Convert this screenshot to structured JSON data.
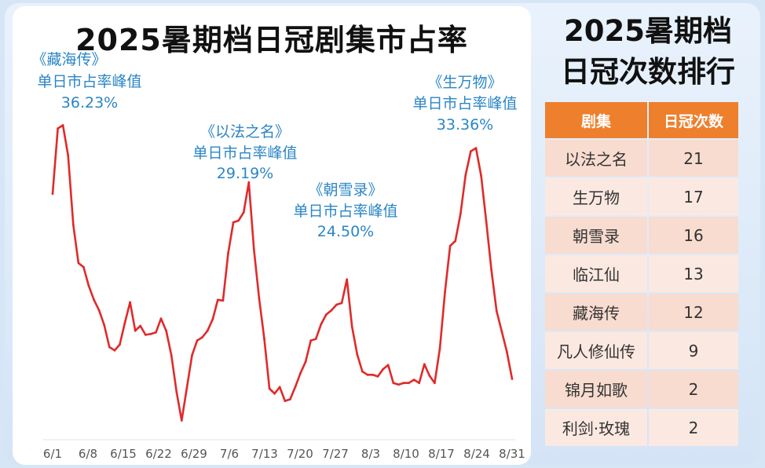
{
  "chart_title": "2025暑期档日冠剧集市占率",
  "side_title_line1": "2025暑期档",
  "side_title_line2": "日冠次数排行",
  "table": {
    "headers": [
      "剧集",
      "日冠次数"
    ],
    "rows": [
      {
        "name": "以法之名",
        "count": "21"
      },
      {
        "name": "生万物",
        "count": "17"
      },
      {
        "name": "朝雪录",
        "count": "16"
      },
      {
        "name": "临江仙",
        "count": "13"
      },
      {
        "name": "藏海传",
        "count": "12"
      },
      {
        "name": "凡人修仙传",
        "count": "9"
      },
      {
        "name": "锦月如歌",
        "count": "2"
      },
      {
        "name": "利剑·玫瑰",
        "count": "2"
      }
    ]
  },
  "colors": {
    "line": "#e02a2a",
    "annotation": "#2b86c5",
    "table_header": "#ee7f2d"
  },
  "chart_data": {
    "type": "line",
    "title": "2025暑期档日冠剧集市占率",
    "xlabel": "",
    "ylabel": "",
    "ylim": [
      0,
      40
    ],
    "grid": false,
    "x_ticks": [
      "6/1",
      "6/8",
      "6/15",
      "6/22",
      "6/29",
      "7/6",
      "7/13",
      "7/20",
      "7/27",
      "8/3",
      "8/10",
      "8/17",
      "8/24",
      "8/31"
    ],
    "series": [
      {
        "values": [
          27.8,
          35.8,
          36.2,
          32.5,
          24.0,
          19.3,
          18.8,
          16.5,
          14.8,
          13.5,
          11.7,
          9.0,
          8.6,
          9.3,
          12.0,
          14.5,
          11.0,
          11.6,
          10.5,
          10.6,
          10.8,
          12.5,
          11.0,
          8.0,
          3.5,
          0.0,
          4.0,
          8.0,
          9.8,
          10.2,
          11.0,
          12.4,
          14.8,
          14.7,
          20.5,
          24.3,
          24.5,
          25.5,
          29.2,
          21.0,
          15.0,
          10.0,
          3.9,
          3.3,
          4.1,
          2.4,
          2.6,
          4.1,
          5.8,
          7.2,
          9.8,
          10.0,
          11.8,
          13.0,
          13.5,
          14.2,
          14.4,
          17.3,
          11.5,
          8.1,
          6.0,
          5.6,
          5.6,
          5.4,
          6.3,
          6.8,
          4.6,
          4.4,
          4.6,
          4.6,
          5.0,
          4.6,
          6.9,
          5.5,
          4.6,
          8.8,
          15.8,
          21.4,
          22.0,
          25.3,
          30.1,
          33.0,
          33.4,
          30.0,
          24.4,
          18.4,
          13.4,
          10.9,
          8.4,
          5.1
        ]
      }
    ],
    "annotations": [
      {
        "name": "《藏海传》",
        "label": "单日市占率峰值",
        "value": "36.23%"
      },
      {
        "name": "《以法之名》",
        "label": "单日市占率峰值",
        "value": "29.19%"
      },
      {
        "name": "《朝雪录》",
        "label": "单日市占率峰值",
        "value": "24.50%"
      },
      {
        "name": "《生万物》",
        "label": "单日市占率峰值",
        "value": "33.36%"
      }
    ]
  }
}
